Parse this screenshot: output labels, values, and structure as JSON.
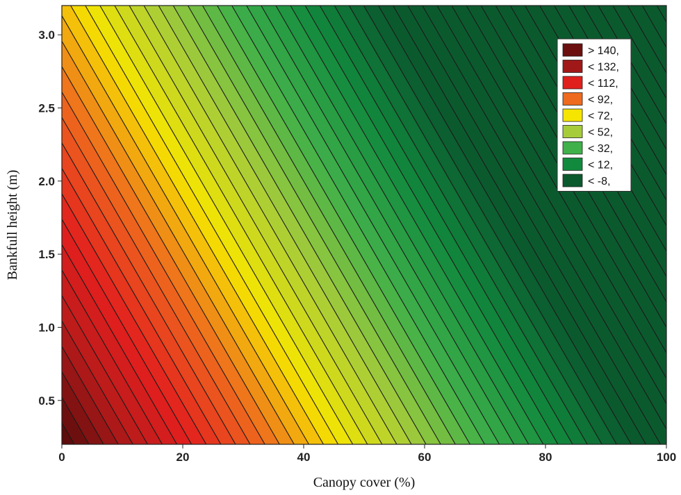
{
  "chart_data": {
    "type": "contour",
    "xlabel": "Canopy cover (%)",
    "ylabel": "Bankfull height (m)",
    "xlim": [
      0,
      100
    ],
    "ylim": [
      0.2,
      3.2
    ],
    "x_ticks": [
      {
        "value": 0,
        "label": "0"
      },
      {
        "value": 20,
        "label": "20"
      },
      {
        "value": 40,
        "label": "40"
      },
      {
        "value": 60,
        "label": "60"
      },
      {
        "value": 80,
        "label": "80"
      },
      {
        "value": 100,
        "label": "100"
      }
    ],
    "y_ticks": [
      {
        "value": 0.5,
        "label": "0.5"
      },
      {
        "value": 1.0,
        "label": "1.0"
      },
      {
        "value": 1.5,
        "label": "1.5"
      },
      {
        "value": 2.0,
        "label": "2.0"
      },
      {
        "value": 2.5,
        "label": "2.5"
      },
      {
        "value": 3.0,
        "label": "3.0"
      }
    ],
    "surface": {
      "z_at_origin": 152,
      "dz_dx": -1.65,
      "dz_dy": -23.0
    },
    "contour_interval": 4,
    "legend": {
      "placement": "top-right",
      "items": [
        {
          "label": "> 140,",
          "color": "#6b0f0f"
        },
        {
          "label": "< 132,",
          "color": "#a01818"
        },
        {
          "label": "< 112,",
          "color": "#e0201c"
        },
        {
          "label": "< 92,",
          "color": "#ee6a1e"
        },
        {
          "label": "< 72,",
          "color": "#f6e500"
        },
        {
          "label": "< 52,",
          "color": "#a6cc3a"
        },
        {
          "label": "< 32,",
          "color": "#3fb04a"
        },
        {
          "label": "< 12,",
          "color": "#128a3e"
        },
        {
          "label": "< -8,",
          "color": "#0b5a2e"
        }
      ]
    },
    "color_stops": [
      {
        "z": 145,
        "color": "#5e0c0c"
      },
      {
        "z": 128,
        "color": "#b71b1b"
      },
      {
        "z": 112,
        "color": "#e3201e"
      },
      {
        "z": 92,
        "color": "#ee6a1e"
      },
      {
        "z": 72,
        "color": "#f6e500"
      },
      {
        "z": 52,
        "color": "#a6cc3a"
      },
      {
        "z": 32,
        "color": "#3fb04a"
      },
      {
        "z": 12,
        "color": "#128a3e"
      },
      {
        "z": -8,
        "color": "#0b5a2e"
      }
    ]
  }
}
